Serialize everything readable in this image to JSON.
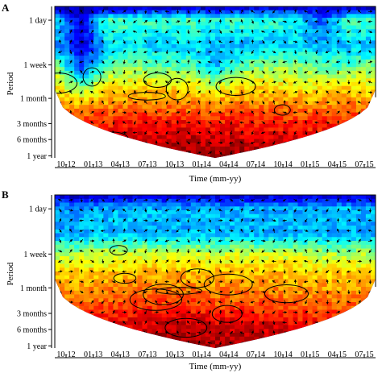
{
  "figure": {
    "panels": [
      {
        "letter": "A",
        "ylabel": "Period",
        "xlabel": "Time (mm-yy)",
        "y_ticks": [
          "1 day",
          "1 week",
          "1 month",
          "3 months",
          "6 months",
          "1 year"
        ],
        "x_ticks": [
          "10-12",
          "01-13",
          "04-13",
          "07-13",
          "10-13",
          "01-14",
          "04-14",
          "07-14",
          "10-14",
          "01-15",
          "04-15",
          "07-15"
        ]
      },
      {
        "letter": "B",
        "ylabel": "Period",
        "xlabel": "Time (mm-yy)",
        "y_ticks": [
          "1 day",
          "1 week",
          "1 month",
          "3 months",
          "6 months",
          "1 year"
        ],
        "x_ticks": [
          "10-12",
          "01-13",
          "04-13",
          "07-13",
          "10-13",
          "01-14",
          "04-14",
          "07-14",
          "10-14",
          "01-15",
          "04-15",
          "07-15"
        ]
      }
    ]
  },
  "chart_data": [
    {
      "type": "heatmap",
      "title": "",
      "panel_label": "A",
      "xlabel": "Time (mm-yy)",
      "ylabel": "Period",
      "x_tick_labels": [
        "10-12",
        "01-13",
        "04-13",
        "07-13",
        "10-13",
        "01-14",
        "04-14",
        "07-14",
        "10-14",
        "01-15",
        "04-15",
        "07-15"
      ],
      "y_tick_labels": [
        "1 day",
        "1 week",
        "1 month",
        "3 months",
        "6 months",
        "1 year"
      ],
      "y_tick_period_days": [
        1,
        7,
        30,
        90,
        180,
        365
      ],
      "y_scale": "log2",
      "colormap": "jet",
      "cone_of_influence": true,
      "phase_arrows": true,
      "significance_contours": true,
      "power_rows": [
        {
          "period_days": 0.6,
          "power": [
            0.08,
            0.05,
            0.08,
            0.1,
            0.1,
            0.1,
            0.08,
            0.1,
            0.1,
            0.1,
            0.1,
            0.08,
            0.08
          ]
        },
        {
          "period_days": 1,
          "power": [
            0.35,
            0.1,
            0.45,
            0.45,
            0.45,
            0.45,
            0.4,
            0.45,
            0.42,
            0.38,
            0.2,
            0.45,
            0.45
          ]
        },
        {
          "period_days": 3,
          "power": [
            0.3,
            0.08,
            0.35,
            0.35,
            0.32,
            0.35,
            0.3,
            0.3,
            0.32,
            0.35,
            0.3,
            0.32,
            0.3
          ]
        },
        {
          "period_days": 7,
          "power": [
            0.5,
            0.15,
            0.45,
            0.5,
            0.45,
            0.45,
            0.3,
            0.45,
            0.5,
            0.5,
            0.45,
            0.45,
            0.5
          ]
        },
        {
          "period_days": 14,
          "power": [
            0.62,
            0.4,
            0.6,
            0.62,
            0.6,
            0.6,
            0.5,
            0.62,
            0.62,
            0.6,
            0.6,
            0.62,
            0.6
          ]
        },
        {
          "period_days": 30,
          "power": [
            0.7,
            0.65,
            0.7,
            0.72,
            0.72,
            0.72,
            0.7,
            0.72,
            0.72,
            0.7,
            0.7,
            0.72,
            0.7
          ]
        },
        {
          "period_days": 60,
          "power": [
            0.75,
            0.78,
            0.8,
            0.82,
            0.82,
            0.8,
            0.8,
            0.82,
            0.8,
            0.8,
            0.8,
            0.8,
            0.78
          ]
        },
        {
          "period_days": 90,
          "power": [
            0.8,
            0.82,
            0.85,
            0.88,
            0.88,
            0.88,
            0.86,
            0.86,
            0.86,
            0.85,
            0.85,
            0.82,
            0.8
          ]
        },
        {
          "period_days": 180,
          "power": [
            0.85,
            0.88,
            0.9,
            0.92,
            0.93,
            0.94,
            0.94,
            0.93,
            0.92,
            0.9,
            0.88,
            0.86,
            0.84
          ]
        },
        {
          "period_days": 365,
          "power": [
            0.9,
            0.92,
            0.94,
            0.96,
            0.97,
            0.98,
            0.98,
            0.97,
            0.96,
            0.94,
            0.92,
            0.9,
            0.88
          ]
        }
      ]
    },
    {
      "type": "heatmap",
      "title": "",
      "panel_label": "B",
      "xlabel": "Time (mm-yy)",
      "ylabel": "Period",
      "x_tick_labels": [
        "10-12",
        "01-13",
        "04-13",
        "07-13",
        "10-13",
        "01-14",
        "04-14",
        "07-14",
        "10-14",
        "01-15",
        "04-15",
        "07-15"
      ],
      "y_tick_labels": [
        "1 day",
        "1 week",
        "1 month",
        "3 months",
        "6 months",
        "1 year"
      ],
      "y_tick_period_days": [
        1,
        7,
        30,
        90,
        180,
        365
      ],
      "y_scale": "log2",
      "colormap": "jet",
      "cone_of_influence": true,
      "phase_arrows": true,
      "significance_contours": true,
      "power_rows": [
        {
          "period_days": 0.6,
          "power": [
            0.1,
            0.08,
            0.1,
            0.1,
            0.1,
            0.1,
            0.1,
            0.1,
            0.1,
            0.1,
            0.1,
            0.1,
            0.1
          ]
        },
        {
          "period_days": 1,
          "power": [
            0.3,
            0.28,
            0.3,
            0.32,
            0.3,
            0.3,
            0.3,
            0.3,
            0.3,
            0.3,
            0.3,
            0.32,
            0.3
          ]
        },
        {
          "period_days": 3,
          "power": [
            0.28,
            0.3,
            0.32,
            0.3,
            0.3,
            0.3,
            0.32,
            0.3,
            0.3,
            0.3,
            0.3,
            0.3,
            0.3
          ]
        },
        {
          "period_days": 7,
          "power": [
            0.55,
            0.55,
            0.58,
            0.6,
            0.58,
            0.58,
            0.58,
            0.58,
            0.58,
            0.58,
            0.55,
            0.55,
            0.55
          ]
        },
        {
          "period_days": 14,
          "power": [
            0.65,
            0.66,
            0.66,
            0.68,
            0.68,
            0.68,
            0.68,
            0.68,
            0.68,
            0.66,
            0.66,
            0.66,
            0.65
          ]
        },
        {
          "period_days": 30,
          "power": [
            0.72,
            0.72,
            0.74,
            0.75,
            0.76,
            0.75,
            0.74,
            0.74,
            0.74,
            0.72,
            0.72,
            0.72,
            0.72
          ]
        },
        {
          "period_days": 60,
          "power": [
            0.76,
            0.78,
            0.8,
            0.82,
            0.82,
            0.82,
            0.8,
            0.8,
            0.8,
            0.78,
            0.78,
            0.78,
            0.76
          ]
        },
        {
          "period_days": 90,
          "power": [
            0.8,
            0.82,
            0.85,
            0.86,
            0.88,
            0.88,
            0.86,
            0.86,
            0.85,
            0.84,
            0.82,
            0.8,
            0.8
          ]
        },
        {
          "period_days": 180,
          "power": [
            0.86,
            0.88,
            0.9,
            0.92,
            0.94,
            0.94,
            0.93,
            0.93,
            0.92,
            0.9,
            0.88,
            0.86,
            0.85
          ]
        },
        {
          "period_days": 365,
          "power": [
            0.9,
            0.92,
            0.94,
            0.96,
            0.98,
            0.98,
            0.97,
            0.97,
            0.96,
            0.94,
            0.92,
            0.9,
            0.88
          ]
        }
      ]
    }
  ]
}
